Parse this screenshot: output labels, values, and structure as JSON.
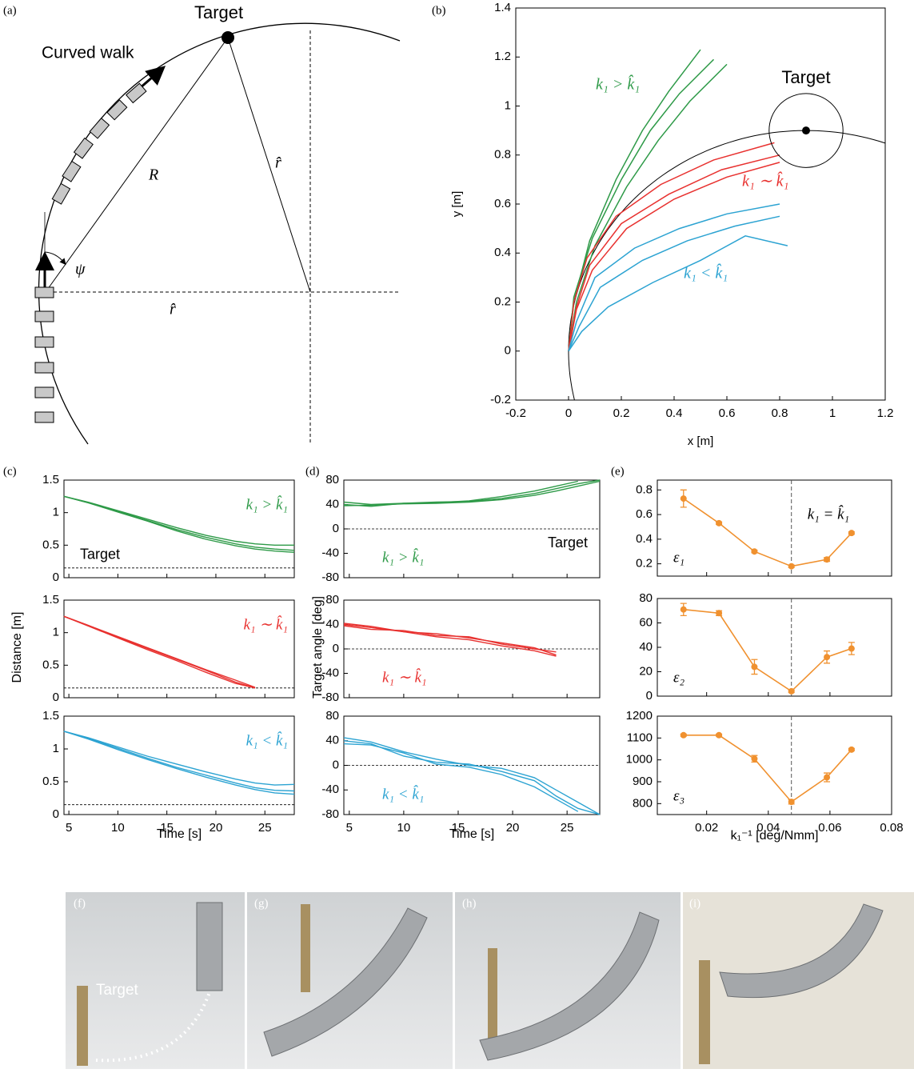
{
  "diagram": {
    "label": "(a)",
    "target": "Target",
    "walk": "Curved walk",
    "radius": "R",
    "r_hat_top": "r̂",
    "r_hat_bottom": "r̂",
    "angle": "ψ"
  },
  "chart_data": [
    {
      "type": "line",
      "label": "(b)",
      "xlabel": "x [m]",
      "ylabel": "y [m]",
      "annotation": "Target",
      "xlim": [
        -0.2,
        1.2
      ],
      "ylim": [
        -0.2,
        1.4
      ],
      "xticks": [
        -0.2,
        0,
        0.2,
        0.4,
        0.6,
        0.8,
        1,
        1.2
      ],
      "yticks": [
        -0.2,
        0,
        0.2,
        0.4,
        0.6,
        0.8,
        1,
        1.2,
        1.4
      ],
      "target": {
        "x": 0.9,
        "y": 0.9,
        "radius": 0.14
      },
      "arc": {
        "cx": 0.9,
        "cy": 0,
        "r": 0.9
      },
      "groups": [
        {
          "label": "k₁ > k̂₁",
          "color": "#2e9a48",
          "trials": [
            {
              "x": [
                0,
                0.02,
                0.08,
                0.18,
                0.28,
                0.38,
                0.5
              ],
              "values": [
                0,
                0.2,
                0.45,
                0.7,
                0.9,
                1.06,
                1.23
              ]
            },
            {
              "x": [
                0,
                0.03,
                0.1,
                0.22,
                0.34,
                0.46,
                0.6
              ],
              "values": [
                0,
                0.2,
                0.43,
                0.67,
                0.86,
                1.02,
                1.17
              ]
            },
            {
              "x": [
                0,
                0.02,
                0.09,
                0.2,
                0.31,
                0.42,
                0.55
              ],
              "values": [
                0,
                0.22,
                0.46,
                0.7,
                0.9,
                1.05,
                1.19
              ]
            }
          ]
        },
        {
          "label": "k₁ ∼ k̂₁",
          "color": "#e8312f",
          "trials": [
            {
              "x": [
                0,
                0.03,
                0.08,
                0.2,
                0.38,
                0.58,
                0.8
              ],
              "values": [
                0,
                0.18,
                0.35,
                0.52,
                0.64,
                0.74,
                0.8
              ]
            },
            {
              "x": [
                0,
                0.02,
                0.07,
                0.18,
                0.35,
                0.55,
                0.78
              ],
              "values": [
                0,
                0.2,
                0.38,
                0.55,
                0.68,
                0.78,
                0.85
              ]
            },
            {
              "x": [
                0,
                0.03,
                0.09,
                0.22,
                0.4,
                0.6,
                0.8
              ],
              "values": [
                0,
                0.17,
                0.33,
                0.5,
                0.62,
                0.71,
                0.77
              ]
            }
          ]
        },
        {
          "label": "k₁ < k̂₁",
          "color": "#2ca3d2",
          "trials": [
            {
              "x": [
                0,
                0.03,
                0.1,
                0.25,
                0.42,
                0.6,
                0.8
              ],
              "values": [
                0,
                0.12,
                0.3,
                0.42,
                0.5,
                0.56,
                0.6
              ]
            },
            {
              "x": [
                0,
                0.04,
                0.12,
                0.28,
                0.45,
                0.63,
                0.8
              ],
              "values": [
                0,
                0.1,
                0.26,
                0.37,
                0.45,
                0.51,
                0.55
              ]
            },
            {
              "x": [
                0,
                0.05,
                0.15,
                0.32,
                0.5,
                0.67,
                0.83
              ],
              "values": [
                0,
                0.08,
                0.18,
                0.28,
                0.37,
                0.47,
                0.43
              ]
            }
          ]
        }
      ]
    },
    {
      "type": "line",
      "label": "(c)",
      "xlabel": "Time [s]",
      "ylabel": "Distance [m]",
      "target_label": "Target",
      "target_line": 0.15,
      "xlim": [
        4.5,
        28
      ],
      "xticks": [
        5,
        10,
        15,
        20,
        25
      ],
      "ylim": [
        0,
        1.5
      ],
      "yticks": [
        0,
        0.5,
        1,
        1.5
      ],
      "x": [
        4.5,
        7,
        10,
        13,
        16,
        19,
        22,
        24,
        26,
        28
      ],
      "panels": [
        {
          "label": "k₁ > k̂₁",
          "color": "#2e9a48",
          "trials": [
            {
              "values": [
                1.25,
                1.16,
                1.03,
                0.9,
                0.77,
                0.65,
                0.56,
                0.52,
                0.5,
                0.5
              ]
            },
            {
              "values": [
                1.25,
                1.15,
                1.02,
                0.88,
                0.74,
                0.62,
                0.52,
                0.47,
                0.44,
                0.42
              ]
            },
            {
              "values": [
                1.25,
                1.15,
                1.01,
                0.87,
                0.72,
                0.59,
                0.49,
                0.44,
                0.41,
                0.39
              ]
            }
          ]
        },
        {
          "label": "k₁ ∼ k̂₁",
          "color": "#e8312f",
          "trials": [
            {
              "values": [
                1.25,
                1.11,
                0.93,
                0.76,
                0.59,
                0.42,
                0.24,
                0.15,
                null,
                null
              ]
            },
            {
              "values": [
                1.25,
                1.1,
                0.92,
                0.74,
                0.57,
                0.39,
                0.22,
                0.15,
                null,
                null
              ]
            },
            {
              "values": [
                1.25,
                1.11,
                0.94,
                0.77,
                0.6,
                0.43,
                0.27,
                0.16,
                null,
                null
              ]
            }
          ]
        },
        {
          "label": "k₁ < k̂₁",
          "color": "#2ca3d2",
          "trials": [
            {
              "values": [
                1.27,
                1.17,
                1.03,
                0.89,
                0.77,
                0.65,
                0.54,
                0.48,
                0.45,
                0.46
              ]
            },
            {
              "values": [
                1.27,
                1.16,
                1.01,
                0.86,
                0.72,
                0.6,
                0.48,
                0.41,
                0.37,
                0.36
              ]
            },
            {
              "values": [
                1.27,
                1.15,
                0.99,
                0.84,
                0.7,
                0.57,
                0.45,
                0.38,
                0.33,
                0.31
              ]
            }
          ]
        }
      ]
    },
    {
      "type": "line",
      "label": "(d)",
      "xlabel": "Time [s]",
      "ylabel": "Target angle [deg]",
      "target_label": "Target",
      "target_line": 0,
      "xlim": [
        4.5,
        28
      ],
      "xticks": [
        5,
        10,
        15,
        20,
        25
      ],
      "ylim": [
        -80,
        80
      ],
      "yticks": [
        -80,
        -40,
        0,
        40,
        80
      ],
      "x": [
        4.5,
        7,
        10,
        13,
        16,
        19,
        22,
        24,
        26,
        28
      ],
      "panels": [
        {
          "label": "k₁ > k̂₁",
          "color": "#2e9a48",
          "trials": [
            {
              "values": [
                40,
                37,
                42,
                44,
                45,
                50,
                58,
                66,
                74,
                80
              ]
            },
            {
              "values": [
                44,
                40,
                42,
                43,
                46,
                53,
                62,
                70,
                78,
                null
              ]
            },
            {
              "values": [
                38,
                39,
                41,
                42,
                44,
                48,
                55,
                62,
                70,
                78
              ]
            }
          ]
        },
        {
          "label": "k₁ ∼ k̂₁",
          "color": "#e8312f",
          "trials": [
            {
              "values": [
                40,
                35,
                28,
                25,
                18,
                10,
                2,
                -10,
                null,
                null
              ]
            },
            {
              "values": [
                38,
                32,
                30,
                22,
                20,
                8,
                0,
                -5,
                null,
                null
              ]
            },
            {
              "values": [
                42,
                37,
                28,
                20,
                15,
                5,
                -3,
                -12,
                null,
                null
              ]
            }
          ]
        },
        {
          "label": "k₁ < k̂₁",
          "color": "#2ca3d2",
          "trials": [
            {
              "values": [
                45,
                38,
                22,
                10,
                0,
                -5,
                -20,
                -40,
                -60,
                -80
              ]
            },
            {
              "values": [
                40,
                35,
                15,
                5,
                2,
                -10,
                -25,
                -50,
                -70,
                -80
              ]
            },
            {
              "values": [
                35,
                33,
                20,
                2,
                -3,
                -15,
                -35,
                -55,
                -75,
                null
              ]
            }
          ]
        }
      ]
    },
    {
      "type": "errorbar",
      "label": "(e)",
      "xlabel": "k₁⁻¹ [deg/Nmm]",
      "color": "#f0912f",
      "xlim": [
        0.004,
        0.08
      ],
      "xticks": [
        0.02,
        0.04,
        0.06,
        0.08
      ],
      "x": [
        0.0125,
        0.024,
        0.0355,
        0.0475,
        0.059,
        0.067
      ],
      "reference_x": 0.0475,
      "reference_label": "k₁ = k̂₁",
      "panels": [
        {
          "label": "ε₁",
          "ylim": [
            0.1,
            0.88
          ],
          "yticks": [
            0.2,
            0.4,
            0.6,
            0.8
          ],
          "values": [
            0.73,
            0.53,
            0.3,
            0.18,
            0.235,
            0.45
          ],
          "errors": [
            0.07,
            0.01,
            0.01,
            0.01,
            0.015,
            0.01
          ]
        },
        {
          "label": "ε₂",
          "ylim": [
            0,
            80
          ],
          "yticks": [
            0,
            20,
            40,
            60,
            80
          ],
          "values": [
            71,
            68,
            24,
            4,
            32,
            39
          ],
          "errors": [
            5,
            2,
            6,
            1,
            5,
            5
          ]
        },
        {
          "label": "ε₃",
          "ylim": [
            750,
            1200
          ],
          "yticks": [
            800,
            900,
            1000,
            1100,
            1200
          ],
          "values": [
            1113,
            1113,
            1005,
            808,
            920,
            1047
          ],
          "errors": [
            5,
            5,
            15,
            10,
            20,
            5
          ]
        }
      ]
    }
  ],
  "photos": {
    "annotation": "Target",
    "panels": [
      {
        "label": "(f)"
      },
      {
        "label": "(g)"
      },
      {
        "label": "(h)"
      },
      {
        "label": "(i)"
      }
    ]
  }
}
